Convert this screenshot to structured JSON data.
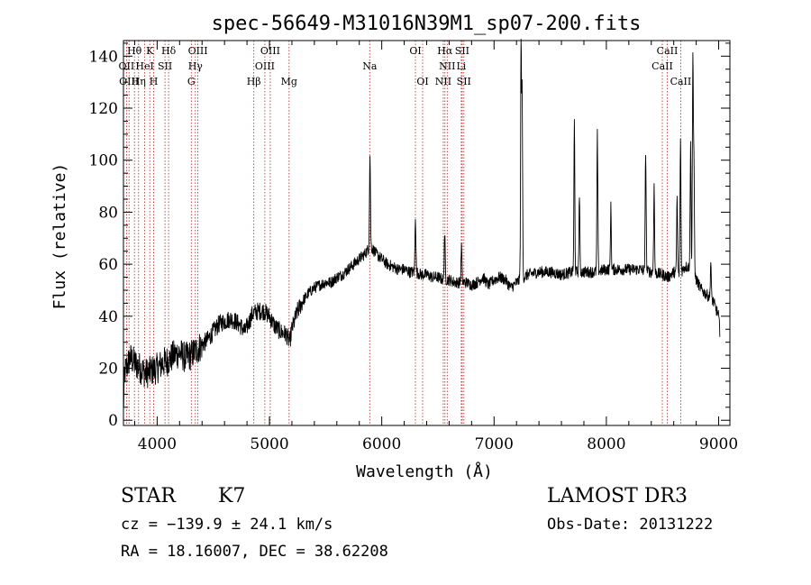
{
  "colors": {
    "axis": "#000000",
    "spectrum": "#000000",
    "line_marker": "#b22222",
    "background": "#ffffff"
  },
  "chart_data": {
    "type": "line",
    "title": "spec-56649-M31016N39M1_sp07-200.fits",
    "xlabel": "Wavelength (Å)",
    "ylabel": "Flux (relative)",
    "xlim": [
      3700,
      9100
    ],
    "ylim": [
      -2,
      146
    ],
    "xticks": [
      4000,
      5000,
      6000,
      7000,
      8000,
      9000
    ],
    "yticks": [
      0,
      20,
      40,
      60,
      80,
      100,
      120,
      140
    ],
    "x_minor_step": 200,
    "y_minor_step": 5,
    "continuum": [
      [
        3700,
        4
      ],
      [
        3710,
        18
      ],
      [
        3760,
        24
      ],
      [
        3800,
        22
      ],
      [
        3850,
        20
      ],
      [
        3900,
        18
      ],
      [
        3950,
        19
      ],
      [
        4000,
        20
      ],
      [
        4050,
        22
      ],
      [
        4100,
        23
      ],
      [
        4150,
        25
      ],
      [
        4200,
        26
      ],
      [
        4250,
        24
      ],
      [
        4300,
        25
      ],
      [
        4350,
        27
      ],
      [
        4400,
        29
      ],
      [
        4450,
        31
      ],
      [
        4500,
        34
      ],
      [
        4550,
        37
      ],
      [
        4600,
        38
      ],
      [
        4650,
        39
      ],
      [
        4700,
        38
      ],
      [
        4750,
        36
      ],
      [
        4780,
        34
      ],
      [
        4820,
        38
      ],
      [
        4850,
        41
      ],
      [
        4900,
        42
      ],
      [
        4950,
        42
      ],
      [
        5000,
        40
      ],
      [
        5050,
        36
      ],
      [
        5100,
        34
      ],
      [
        5150,
        33
      ],
      [
        5180,
        30
      ],
      [
        5200,
        35
      ],
      [
        5250,
        42
      ],
      [
        5300,
        46
      ],
      [
        5350,
        49
      ],
      [
        5400,
        51
      ],
      [
        5450,
        52
      ],
      [
        5500,
        53
      ],
      [
        5550,
        53
      ],
      [
        5600,
        55
      ],
      [
        5650,
        56
      ],
      [
        5700,
        58
      ],
      [
        5750,
        60
      ],
      [
        5800,
        62
      ],
      [
        5850,
        64
      ],
      [
        5900,
        67
      ],
      [
        5950,
        64
      ],
      [
        6000,
        62
      ],
      [
        6050,
        60
      ],
      [
        6100,
        59
      ],
      [
        6150,
        58
      ],
      [
        6200,
        58
      ],
      [
        6250,
        57
      ],
      [
        6300,
        57
      ],
      [
        6350,
        56
      ],
      [
        6400,
        56
      ],
      [
        6450,
        55
      ],
      [
        6500,
        55
      ],
      [
        6550,
        54
      ],
      [
        6600,
        54
      ],
      [
        6650,
        53
      ],
      [
        6700,
        53
      ],
      [
        6750,
        53
      ],
      [
        6800,
        52
      ],
      [
        6850,
        53
      ],
      [
        6900,
        55
      ],
      [
        6950,
        52
      ],
      [
        7000,
        54
      ],
      [
        7050,
        55
      ],
      [
        7100,
        54
      ],
      [
        7150,
        51
      ],
      [
        7200,
        53
      ],
      [
        7300,
        56
      ],
      [
        7400,
        57
      ],
      [
        7500,
        57
      ],
      [
        7600,
        56
      ],
      [
        7700,
        57
      ],
      [
        7800,
        57
      ],
      [
        7900,
        57
      ],
      [
        8000,
        58
      ],
      [
        8100,
        58
      ],
      [
        8200,
        58
      ],
      [
        8300,
        58
      ],
      [
        8400,
        57
      ],
      [
        8500,
        56
      ],
      [
        8550,
        55
      ],
      [
        8600,
        57
      ],
      [
        8650,
        56
      ],
      [
        8700,
        59
      ],
      [
        8750,
        59
      ],
      [
        8800,
        54
      ],
      [
        8850,
        50
      ],
      [
        8900,
        48
      ],
      [
        8950,
        46
      ],
      [
        9000,
        40
      ],
      [
        9010,
        34
      ]
    ],
    "emission_peaks": [
      {
        "x": 5895,
        "peak": 102
      },
      {
        "x": 6300,
        "peak": 79
      },
      {
        "x": 6560,
        "peak": 72
      },
      {
        "x": 6710,
        "peak": 67
      },
      {
        "x": 7240,
        "peak": 144
      },
      {
        "x": 7250,
        "peak": 125
      },
      {
        "x": 7715,
        "peak": 115
      },
      {
        "x": 7760,
        "peak": 87
      },
      {
        "x": 7920,
        "peak": 110
      },
      {
        "x": 8040,
        "peak": 82
      },
      {
        "x": 8350,
        "peak": 104
      },
      {
        "x": 8425,
        "peak": 90
      },
      {
        "x": 8630,
        "peak": 86
      },
      {
        "x": 8660,
        "peak": 108
      },
      {
        "x": 8750,
        "peak": 106
      },
      {
        "x": 8770,
        "peak": 140
      },
      {
        "x": 8780,
        "peak": 100
      },
      {
        "x": 8930,
        "peak": 61
      }
    ],
    "spectral_lines": [
      {
        "label": "Hθ",
        "x": 3798,
        "row": 0
      },
      {
        "label": "K",
        "x": 3934,
        "row": 0
      },
      {
        "label": "Hδ",
        "x": 4102,
        "row": 0
      },
      {
        "label": "OIII",
        "x": 4363,
        "row": 0
      },
      {
        "label": "OIII",
        "x": 5007,
        "row": 0
      },
      {
        "label": "OI",
        "x": 6300,
        "row": 0
      },
      {
        "label": "Hα",
        "x": 6563,
        "row": 0
      },
      {
        "label": "SII",
        "x": 6716,
        "row": 0
      },
      {
        "label": "CaII",
        "x": 8542,
        "row": 0
      },
      {
        "label": "OII",
        "x": 3727,
        "row": 1
      },
      {
        "label": "HeI",
        "x": 3889,
        "row": 1
      },
      {
        "label": "SII",
        "x": 4070,
        "row": 1
      },
      {
        "label": "Hγ",
        "x": 4340,
        "row": 1
      },
      {
        "label": "OIII",
        "x": 4959,
        "row": 1
      },
      {
        "label": "Na",
        "x": 5893,
        "row": 1
      },
      {
        "label": "NII",
        "x": 6583,
        "row": 1
      },
      {
        "label": "Li",
        "x": 6708,
        "row": 1
      },
      {
        "label": "CaII",
        "x": 8498,
        "row": 1
      },
      {
        "label": "OIII",
        "x": 3750,
        "row": 2
      },
      {
        "label": "Hη",
        "x": 3835,
        "row": 2
      },
      {
        "label": "H",
        "x": 3969,
        "row": 2
      },
      {
        "label": "G",
        "x": 4304,
        "row": 2
      },
      {
        "label": "Hβ",
        "x": 4861,
        "row": 2
      },
      {
        "label": "Mg",
        "x": 5175,
        "row": 2
      },
      {
        "label": "OI",
        "x": 6364,
        "row": 2
      },
      {
        "label": "NII",
        "x": 6548,
        "row": 2
      },
      {
        "label": "SII",
        "x": 6731,
        "row": 2
      },
      {
        "label": "CaII",
        "x": 8662,
        "row": 2
      }
    ]
  },
  "info": {
    "object_class": "STAR",
    "subclass": "K7",
    "survey": "LAMOST DR3",
    "cz_line": "cz = −139.9 ± 24.1 km/s",
    "obs_date_line": "Obs-Date: 20131222",
    "radec_line": "RA =  18.16007, DEC =  38.62208"
  }
}
